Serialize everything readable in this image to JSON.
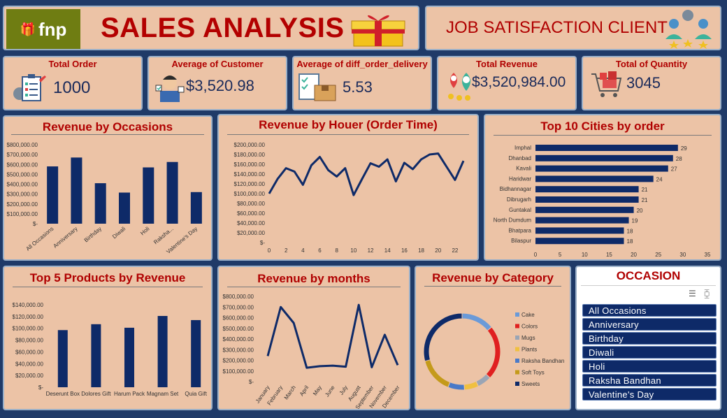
{
  "header": {
    "logo_text": "fnp",
    "title": "SALES ANALYSIS",
    "subtitle": "JOB SATISFACTION CLIENT"
  },
  "kpis": [
    {
      "label": "Total Order",
      "value": "1000",
      "icon": "clipboard-checklist-icon"
    },
    {
      "label": "Average of Customer",
      "value": "$3,520.98",
      "icon": "customer-service-icon"
    },
    {
      "label": "Average of diff_order_delivery",
      "value": "5.53",
      "icon": "delivery-box-icon"
    },
    {
      "label": "Total Revenue",
      "value": "$3,520,984.00",
      "icon": "map-pin-money-icon"
    },
    {
      "label": "Total of Quantity",
      "value": "3045",
      "icon": "shopping-cart-icon"
    }
  ],
  "panels": {
    "occasions_title": "Revenue by Occasions",
    "hour_title": "Revenue by Houer (Order Time)",
    "cities_title": "Top 10 Cities by order",
    "products_title": "Top 5 Products by Revenue",
    "months_title": "Revenue by months",
    "category_title": "Revenue by Category",
    "slicer_title": "OCCASION"
  },
  "slicer": {
    "items": [
      "All Occasions",
      "Anniversary",
      "Birthday",
      "Diwali",
      "Holi",
      "Raksha Bandhan",
      "Valentine's Day"
    ]
  },
  "colors": {
    "bar": "#0e2a68",
    "title": "#b00000",
    "panel": "#ecc3a6",
    "background": "#1f3a68"
  },
  "chart_data": [
    {
      "id": "occasions",
      "type": "bar",
      "title": "Revenue by Occasions",
      "categories": [
        "All Occasions",
        "Anniversary",
        "Birthday",
        "Diwali",
        "Holi",
        "Raksha...",
        "Valentine's Day"
      ],
      "values": [
        580000,
        670000,
        410000,
        315000,
        570000,
        625000,
        320000
      ],
      "yticks": [
        "$-",
        "$100,000.00",
        "$200,000.00",
        "$300,000.00",
        "$400,000.00",
        "$500,000.00",
        "$600,000.00",
        "$700,000.00",
        "$800,000.00"
      ],
      "ylim": [
        0,
        800000
      ]
    },
    {
      "id": "hour",
      "type": "line",
      "title": "Revenue by Houer (Order Time)",
      "x": [
        0,
        1,
        2,
        3,
        4,
        5,
        6,
        7,
        8,
        9,
        10,
        11,
        12,
        13,
        14,
        15,
        16,
        17,
        18,
        19,
        20,
        21,
        22,
        23
      ],
      "values": [
        100000,
        130000,
        152000,
        145000,
        118000,
        158000,
        175000,
        148000,
        135000,
        152000,
        97000,
        130000,
        162000,
        155000,
        170000,
        125000,
        163000,
        150000,
        170000,
        180000,
        182000,
        155000,
        128000,
        167000
      ],
      "xticks": [
        "0",
        "2",
        "4",
        "6",
        "8",
        "10",
        "12",
        "14",
        "16",
        "18",
        "20",
        "22"
      ],
      "yticks": [
        "$-",
        "$20,000.00",
        "$40,000.00",
        "$60,000.00",
        "$80,000.00",
        "$100,000.00",
        "$120,000.00",
        "$140,000.00",
        "$160,000.00",
        "$180,000.00",
        "$200,000.00"
      ],
      "ylim": [
        0,
        200000
      ]
    },
    {
      "id": "cities",
      "type": "bar",
      "title": "Top 10 Cities by order",
      "categories": [
        "Imphal",
        "Dhanbad",
        "Kavali",
        "Haridwar",
        "Bidhannagar",
        "Dibrugarh",
        "Guntakal",
        "North Dumdum",
        "Bhatpara",
        "Bilaspur"
      ],
      "values": [
        29,
        28,
        27,
        24,
        21,
        21,
        20,
        19,
        18,
        18
      ],
      "xticks": [
        "0",
        "5",
        "10",
        "15",
        "20",
        "25",
        "30",
        "35"
      ],
      "xlim": [
        0,
        35
      ]
    },
    {
      "id": "products",
      "type": "bar",
      "title": "Top 5 Products by Revenue",
      "categories": [
        "Deserunt Box",
        "Dolores Gift",
        "Harum Pack",
        "Magnam Set",
        "Quia Gift"
      ],
      "values": [
        97000,
        107000,
        101000,
        121000,
        114000
      ],
      "yticks": [
        "$-",
        "$20,000.00",
        "$40,000.00",
        "$60,000.00",
        "$80,000.00",
        "$100,000.00",
        "$120,000.00",
        "$140,000.00"
      ],
      "ylim": [
        0,
        140000
      ]
    },
    {
      "id": "months",
      "type": "line",
      "title": "Revenue by months",
      "categories": [
        "January",
        "February",
        "March",
        "April",
        "May",
        "June",
        "July",
        "August",
        "September",
        "November",
        "December"
      ],
      "values": [
        240000,
        700000,
        550000,
        130000,
        145000,
        150000,
        140000,
        720000,
        135000,
        440000,
        155000
      ],
      "yticks": [
        "$-",
        "$100,000.00",
        "$200,000.00",
        "$300,000.00",
        "$400,000.00",
        "$500,000.00",
        "$600,000.00",
        "$700,000.00",
        "$800,000.00"
      ],
      "ylim": [
        0,
        800000
      ]
    },
    {
      "id": "category",
      "type": "pie",
      "title": "Revenue by Category",
      "categories": [
        "Cake",
        "Colors",
        "Mugs",
        "Plants",
        "Raksha Bandhan",
        "Soft Toys",
        "Sweets"
      ],
      "values": [
        14,
        23,
        6,
        6,
        7,
        15,
        29
      ],
      "colors": [
        "#6a9ad8",
        "#e02020",
        "#9aa5b5",
        "#f0c040",
        "#4a7ac8",
        "#c49a1a",
        "#0e2a68"
      ]
    }
  ]
}
